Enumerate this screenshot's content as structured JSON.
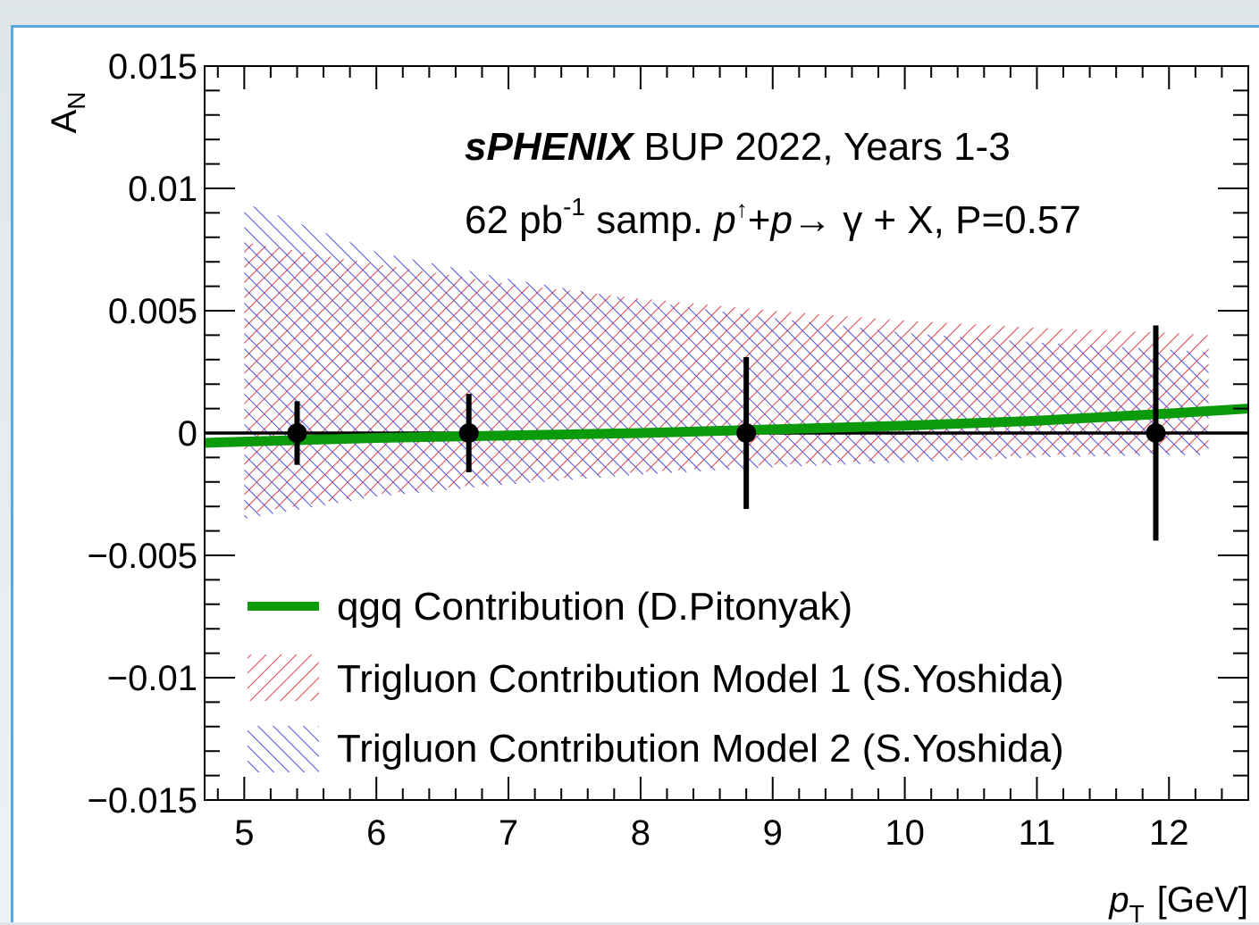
{
  "chart_data": {
    "type": "line",
    "xlabel_italic": "p",
    "xlabel_sub": "T",
    "xlabel_unit": "[GeV]",
    "ylabel_main": "A",
    "ylabel_sub": "N",
    "xlim": [
      4.7,
      12.6
    ],
    "ylim": [
      -0.015,
      0.015
    ],
    "x_ticks": [
      5,
      6,
      7,
      8,
      9,
      10,
      11,
      12
    ],
    "x_tick_labels": [
      "5",
      "6",
      "7",
      "8",
      "9",
      "10",
      "11",
      "12"
    ],
    "y_ticks": [
      -0.015,
      -0.01,
      -0.005,
      0,
      0.005,
      0.01,
      0.015
    ],
    "y_tick_labels": [
      "−0.015",
      "−0.01",
      "−0.005",
      "0",
      "0.005",
      "0.01",
      "0.015"
    ],
    "annotation": {
      "experiment": "sPHENIX",
      "line1_rest": " BUP 2022, Years 1-3",
      "lumi_value": "62 pb",
      "lumi_exp": "-1",
      "samp_text": " samp. ",
      "p1": "p",
      "up_arrow": "↑",
      "plus": "+",
      "p2": "p",
      "reaction_rest": "→ γ + X, P=0.57"
    },
    "series": [
      {
        "name": "qgq Contribution (D.Pitonyak)",
        "kind": "line",
        "color": "#0a9a0a",
        "x": [
          4.7,
          5,
          6,
          7,
          8,
          9,
          10,
          11,
          12,
          12.6
        ],
        "y": [
          -0.0004,
          -0.00035,
          -0.0002,
          -0.0001,
          0.0,
          0.00015,
          0.0003,
          0.0005,
          0.0008,
          0.001
        ]
      },
      {
        "name": "Trigluon Contribution Model 1 (S.Yoshida)",
        "kind": "band",
        "color": "#e0404a",
        "x": [
          5,
          6,
          7,
          8,
          9,
          10,
          11,
          12,
          12.3
        ],
        "upper": [
          0.0078,
          0.0069,
          0.0061,
          0.0055,
          0.005,
          0.0046,
          0.0043,
          0.0041,
          0.004
        ],
        "lower": [
          -0.0033,
          -0.0025,
          -0.002,
          -0.0016,
          -0.0013,
          -0.0011,
          -0.0009,
          -0.0008,
          -0.0008
        ]
      },
      {
        "name": "Trigluon Contribution Model 2 (S.Yoshida)",
        "kind": "band",
        "color": "#4a50e0",
        "x": [
          5,
          6,
          7,
          8,
          9,
          10,
          11,
          12,
          12.3
        ],
        "upper": [
          0.0094,
          0.0074,
          0.0063,
          0.0054,
          0.0047,
          0.0041,
          0.0037,
          0.0034,
          0.0033
        ],
        "lower": [
          -0.0035,
          -0.0026,
          -0.0021,
          -0.0017,
          -0.0014,
          -0.0012,
          -0.001,
          -0.0009,
          -0.0009
        ]
      }
    ],
    "points": [
      {
        "x": 5.4,
        "y": 0.0,
        "err": 0.0013
      },
      {
        "x": 6.7,
        "y": 0.0,
        "err": 0.0016
      },
      {
        "x": 8.8,
        "y": 0.0,
        "err": 0.0031
      },
      {
        "x": 11.9,
        "y": 0.0,
        "err": 0.0044
      }
    ],
    "legend_placement": "bottom-left",
    "grid": false
  }
}
